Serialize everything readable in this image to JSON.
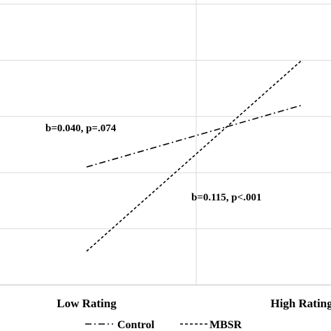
{
  "chart_data": {
    "type": "line",
    "title": "",
    "xlabel": "",
    "ylabel": "",
    "categories": [
      "Low Rating",
      "High Rating"
    ],
    "grid": true,
    "legend_position": "bottom",
    "series": [
      {
        "name": "Control",
        "values": [
          3.1,
          4.2
        ],
        "line_style": "dash-dot",
        "color": "#000000"
      },
      {
        "name": "MBSR",
        "values": [
          1.6,
          5.0
        ],
        "line_style": "dashed",
        "color": "#000000"
      }
    ],
    "ylim": [
      1.0,
      6.0
    ],
    "annotations": [
      {
        "text": "b=0.040, p=.074",
        "series": "Control"
      },
      {
        "text": "b=0.115, p<.001",
        "series": "MBSR"
      }
    ]
  }
}
